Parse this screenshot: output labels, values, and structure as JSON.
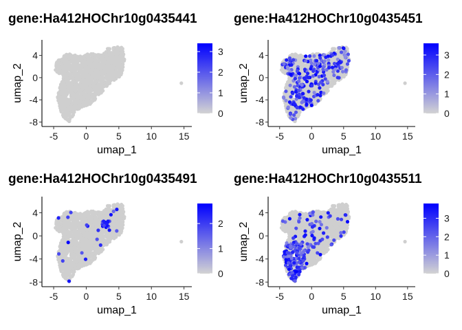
{
  "chart_data": [
    {
      "type": "scatter",
      "title": "gene:Ha412HOChr10g0435441",
      "xlabel": "umap_1",
      "ylabel": "umap_2",
      "x_ticks": [
        -5,
        0,
        5,
        10,
        15
      ],
      "y_ticks": [
        4,
        0,
        -4,
        -8
      ],
      "xlim": [
        -6.8,
        16.2
      ],
      "ylim": [
        -8.8,
        6.8
      ],
      "legend": {
        "placement": "right",
        "ticks": [
          0,
          1,
          2,
          3
        ],
        "max": 3.4,
        "low_color": "#d3d3d3",
        "high_color": "#0000ff"
      },
      "expression": "none",
      "seed": 11
    },
    {
      "type": "scatter",
      "title": "gene:Ha412HOChr10g0435451",
      "xlabel": "umap_1",
      "ylabel": "umap_2",
      "x_ticks": [
        -5,
        0,
        5,
        10,
        15
      ],
      "y_ticks": [
        4,
        0,
        -4,
        -8
      ],
      "xlim": [
        -6.8,
        16.2
      ],
      "ylim": [
        -8.8,
        6.8
      ],
      "legend": {
        "placement": "right",
        "ticks": [
          0,
          1,
          2,
          3
        ],
        "max": 3.6,
        "low_color": "#d3d3d3",
        "high_color": "#0000ff"
      },
      "expression": "scattered",
      "seed": 23
    },
    {
      "type": "scatter",
      "title": "gene:Ha412HOChr10g0435491",
      "xlabel": "umap_1",
      "ylabel": "umap_2",
      "x_ticks": [
        -5,
        0,
        5,
        10,
        15
      ],
      "y_ticks": [
        4,
        0,
        -4,
        -8
      ],
      "xlim": [
        -6.8,
        16.2
      ],
      "ylim": [
        -8.8,
        6.8
      ],
      "legend": {
        "placement": "right",
        "ticks": [
          0,
          1,
          2
        ],
        "max": 2.8,
        "low_color": "#d3d3d3",
        "high_color": "#0000ff"
      },
      "expression": "sparse",
      "seed": 37
    },
    {
      "type": "scatter",
      "title": "gene:Ha412HOChr10g0435511",
      "xlabel": "umap_1",
      "ylabel": "umap_2",
      "x_ticks": [
        -5,
        0,
        5,
        10,
        15
      ],
      "y_ticks": [
        4,
        0,
        -4,
        -8
      ],
      "xlim": [
        -6.8,
        16.2
      ],
      "ylim": [
        -8.8,
        6.8
      ],
      "legend": {
        "placement": "right",
        "ticks": [
          0,
          1,
          2,
          3
        ],
        "max": 3.8,
        "low_color": "#d3d3d3",
        "high_color": "#0000ff"
      },
      "expression": "lower-left",
      "seed": 51
    }
  ]
}
